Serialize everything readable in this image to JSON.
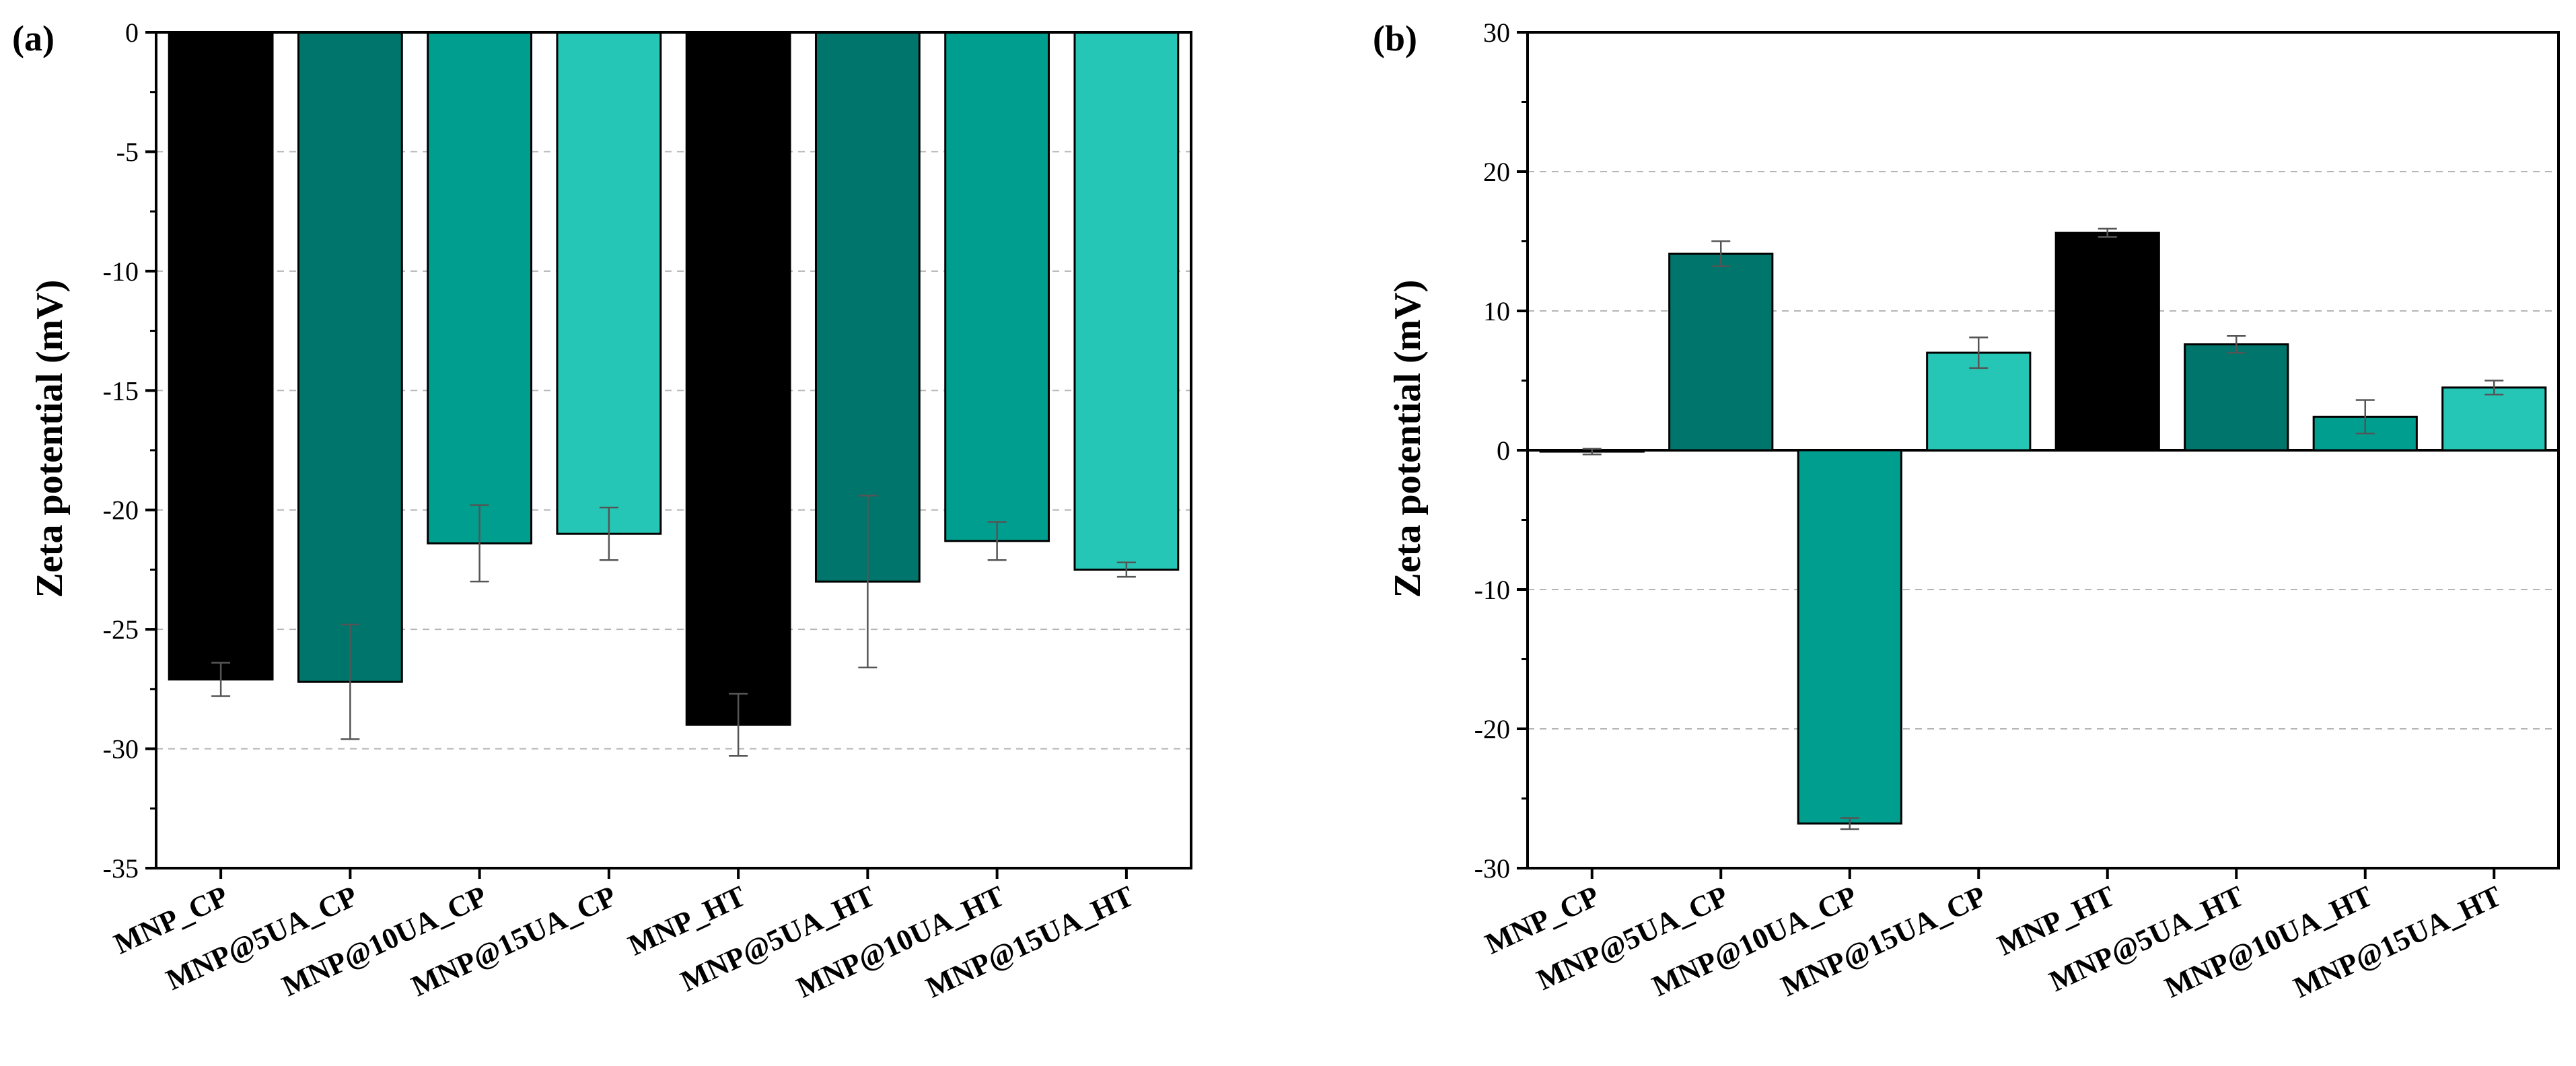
{
  "chart_data": [
    {
      "type": "bar",
      "panel_label": "(a)",
      "ylabel": "Zeta potential (mV)",
      "xlabel": "",
      "ylim": [
        -35,
        0
      ],
      "yticks": [
        0,
        -5,
        -10,
        -15,
        -20,
        -25,
        -30,
        -35
      ],
      "grid": true,
      "categories": [
        "MNP_CP",
        "MNP@5UA_CP",
        "MNP@10UA_CP",
        "MNP@15UA_CP",
        "MNP_HT",
        "MNP@5UA_HT",
        "MNP@10UA_HT",
        "MNP@15UA_HT"
      ],
      "values": [
        -27.1,
        -27.2,
        -21.4,
        -21.0,
        -29.0,
        -23.0,
        -21.3,
        -22.5
      ],
      "errors": [
        0.7,
        2.4,
        1.6,
        1.1,
        1.3,
        3.6,
        0.8,
        0.3
      ],
      "colors": [
        "#000000",
        "#00756b",
        "#009e8f",
        "#26c6b6",
        "#000000",
        "#00756b",
        "#009e8f",
        "#26c6b6"
      ]
    },
    {
      "type": "bar",
      "panel_label": "(b)",
      "ylabel": "Zeta potential (mV)",
      "xlabel": "",
      "ylim": [
        -30,
        30
      ],
      "yticks": [
        30,
        20,
        10,
        0,
        -10,
        -20,
        -30
      ],
      "grid": true,
      "categories": [
        "MNP_CP",
        "MNP@5UA_CP",
        "MNP@10UA_CP",
        "MNP@15UA_CP",
        "MNP_HT",
        "MNP@5UA_HT",
        "MNP@10UA_HT",
        "MNP@15UA_HT"
      ],
      "values": [
        -0.1,
        14.1,
        -26.8,
        7.0,
        15.6,
        7.6,
        2.4,
        4.5
      ],
      "errors": [
        0.2,
        0.9,
        0.4,
        1.1,
        0.3,
        0.6,
        1.2,
        0.5
      ],
      "colors": [
        "#000000",
        "#00756b",
        "#009e8f",
        "#26c6b6",
        "#000000",
        "#00756b",
        "#009e8f",
        "#26c6b6"
      ]
    }
  ]
}
